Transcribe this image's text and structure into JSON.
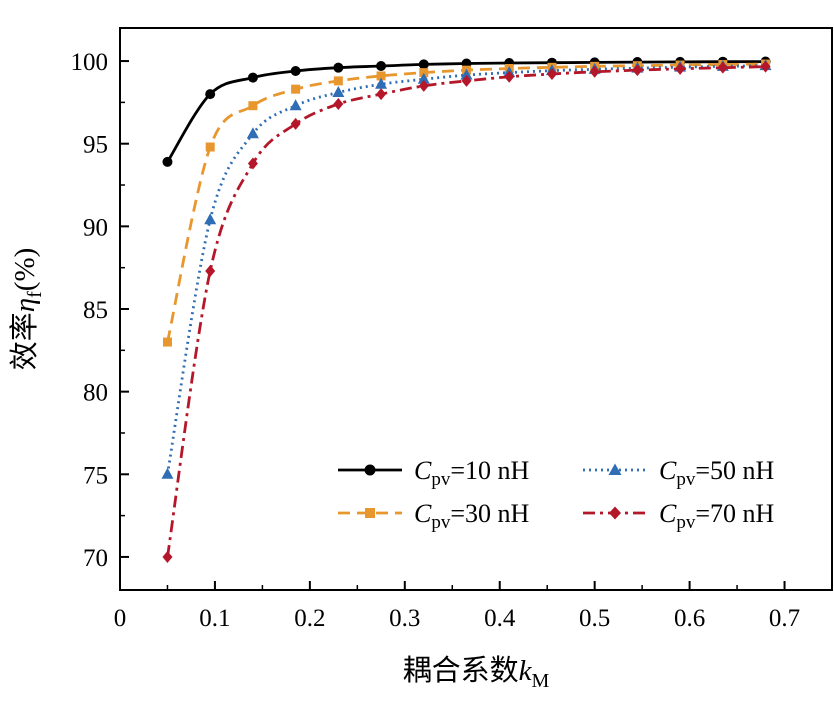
{
  "chart_data": {
    "type": "line",
    "xlabel": "耦合系数",
    "xlabel_var": "k",
    "xlabel_sub": "M",
    "ylabel": "效率",
    "ylabel_var": "η",
    "ylabel_sub": "f",
    "ylabel_unit": "(%)",
    "xlim": [
      0,
      0.75
    ],
    "ylim": [
      68,
      102
    ],
    "xticks": [
      0,
      0.1,
      0.2,
      0.3,
      0.4,
      0.5,
      0.6,
      0.7
    ],
    "xtick_labels": [
      "0",
      "0.1",
      "0.2",
      "0.3",
      "0.4",
      "0.5",
      "0.6",
      "0.7"
    ],
    "yticks": [
      70,
      75,
      80,
      85,
      90,
      95,
      100
    ],
    "ytick_labels": [
      "70",
      "75",
      "80",
      "85",
      "90",
      "95",
      "100"
    ],
    "y_minor_ticks": [
      72.5,
      77.5,
      82.5,
      87.5,
      92.5,
      97.5
    ],
    "x_minor_ticks": [
      0.05,
      0.15,
      0.25,
      0.35,
      0.45,
      0.55,
      0.65
    ],
    "grid": false,
    "legend_position": "bottom-right",
    "x": [
      0.05,
      0.095,
      0.14,
      0.185,
      0.23,
      0.275,
      0.32,
      0.365,
      0.41,
      0.455,
      0.5,
      0.545,
      0.59,
      0.635,
      0.68
    ],
    "series": [
      {
        "name_main": "C",
        "name_sub": "pv",
        "name_rest": "=10 nH",
        "color": "#000000",
        "dash": "",
        "marker": "circle",
        "values": [
          93.9,
          98.0,
          99.0,
          99.4,
          99.6,
          99.7,
          99.8,
          99.85,
          99.88,
          99.9,
          99.92,
          99.94,
          99.95,
          99.96,
          99.97
        ]
      },
      {
        "name_main": "C",
        "name_sub": "pv",
        "name_rest": "=30 nH",
        "color": "#E8962E",
        "dash": "12,7",
        "marker": "square",
        "values": [
          83.0,
          94.8,
          97.3,
          98.3,
          98.8,
          99.1,
          99.3,
          99.45,
          99.55,
          99.62,
          99.68,
          99.72,
          99.76,
          99.79,
          99.82
        ]
      },
      {
        "name_main": "C",
        "name_sub": "pv",
        "name_rest": "=50 nH",
        "color": "#2F6DB5",
        "dash": "2,4",
        "marker": "triangle",
        "values": [
          75.0,
          90.4,
          95.6,
          97.3,
          98.1,
          98.6,
          98.9,
          99.15,
          99.3,
          99.42,
          99.5,
          99.57,
          99.63,
          99.68,
          99.72
        ]
      },
      {
        "name_main": "C",
        "name_sub": "pv",
        "name_rest": "=70 nH",
        "color": "#B5172A",
        "dash": "12,5,3,5",
        "marker": "diamond",
        "values": [
          70.0,
          87.3,
          93.8,
          96.2,
          97.4,
          98.0,
          98.5,
          98.8,
          99.05,
          99.22,
          99.35,
          99.45,
          99.53,
          99.6,
          99.66
        ]
      }
    ]
  }
}
